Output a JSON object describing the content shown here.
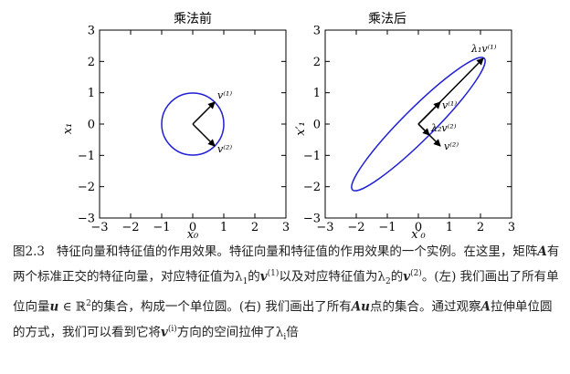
{
  "figure": {
    "left_panel": {
      "title": "乘法前",
      "xlabel": "x₀",
      "ylabel": "x₁",
      "xticks": [
        "−3",
        "−2",
        "−1",
        "0",
        "1",
        "2",
        "3"
      ],
      "yticks": [
        "3",
        "2",
        "1",
        "0",
        "−1",
        "−2",
        "−3"
      ],
      "vector_labels": [
        "v⁽¹⁾",
        "v⁽²⁾"
      ]
    },
    "right_panel": {
      "title": "乘法后",
      "xlabel": "x′₀",
      "ylabel": "x′₁",
      "xticks": [
        "−3",
        "−2",
        "−1",
        "0",
        "1",
        "2",
        "3"
      ],
      "yticks": [
        "3",
        "2",
        "1",
        "0",
        "−1",
        "−2",
        "−3"
      ],
      "vector_labels": [
        "λ₁v⁽¹⁾",
        "v⁽¹⁾",
        "λ₂v⁽²⁾",
        "v⁽²⁾"
      ]
    },
    "curve_color": "#1f1fd6",
    "vector_color": "#000000"
  },
  "chart_data": [
    {
      "type": "line",
      "title": "乘法前",
      "xlabel": "x₀",
      "ylabel": "x₁",
      "xlim": [
        -3,
        3
      ],
      "ylim": [
        -3,
        3
      ],
      "curve": "unit circle",
      "vectors": [
        {
          "name": "v⁽¹⁾",
          "x": 0.707,
          "y": 0.707
        },
        {
          "name": "v⁽²⁾",
          "x": 0.707,
          "y": -0.707
        }
      ]
    },
    {
      "type": "line",
      "title": "乘法后",
      "xlabel": "x′₀",
      "ylabel": "x′₁",
      "xlim": [
        -3,
        3
      ],
      "ylim": [
        -3,
        3
      ],
      "curve": "ellipse",
      "vectors": [
        {
          "name": "λ₁v⁽¹⁾",
          "x": 2.1,
          "y": 2.1
        },
        {
          "name": "v⁽¹⁾",
          "x": 0.707,
          "y": 0.707
        },
        {
          "name": "λ₂v⁽²⁾",
          "x": 0.35,
          "y": -0.35
        },
        {
          "name": "v⁽²⁾",
          "x": 0.707,
          "y": -0.707
        }
      ]
    }
  ],
  "caption": {
    "fig_no": "图2.3",
    "p1": "特征向量和特征值的作用效果。特征向量和特征值的作用效果的一个实例。在这里，矩阵",
    "A": "A",
    "p2": "有两个标准正交的特征向量，对应特征值为",
    "lambda": "λ",
    "one": "1",
    "two": "2",
    "p3": "的",
    "v": "v",
    "sup1": "(1)",
    "sup2": "(2)",
    "p4": "以及对应特征值为",
    "p5": "。(左) 我们画出了所有单位向量",
    "u": "u",
    "in": " ∈ ",
    "R2": "ℝ",
    "sq": "2",
    "p6": "的集合，构成一个单位圆。(右) 我们画出了所有",
    "Au": "Au",
    "p7": "点的集合。通过观察",
    "p8": "拉伸单位圆的方式，我们可以看到它将",
    "sup_i": "(i)",
    "p9": "方向的空间拉伸了",
    "i": "i",
    "p10": "倍"
  }
}
